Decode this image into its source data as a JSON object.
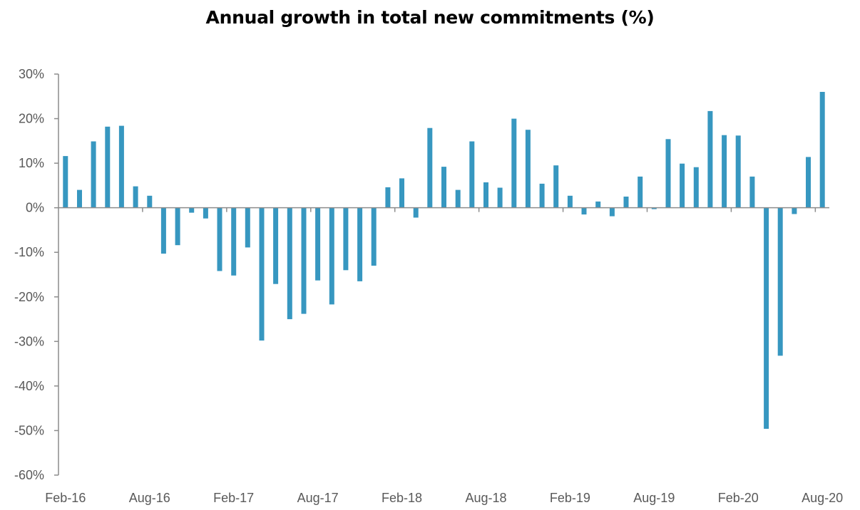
{
  "chart_data": {
    "type": "bar",
    "title": "Annual growth in total new commitments (%)",
    "xlabel": "",
    "ylabel": "",
    "ylim": [
      -60,
      30
    ],
    "yticks": [
      30,
      20,
      10,
      0,
      -10,
      -20,
      -30,
      -40,
      -50,
      -60
    ],
    "ytick_labels": [
      "30%",
      "20%",
      "10%",
      "0%",
      "-10%",
      "-20%",
      "-30%",
      "-40%",
      "-50%",
      "-60%"
    ],
    "xtick_labels": [
      "Feb-16",
      "Aug-16",
      "Feb-17",
      "Aug-17",
      "Feb-18",
      "Aug-18",
      "Feb-19",
      "Aug-19",
      "Feb-20",
      "Aug-20"
    ],
    "grid": false,
    "legend": "none",
    "bar_color": "#3797c0",
    "categories": [
      "Feb-16",
      "Mar-16",
      "Apr-16",
      "May-16",
      "Jun-16",
      "Jul-16",
      "Aug-16",
      "Sep-16",
      "Oct-16",
      "Nov-16",
      "Dec-16",
      "Jan-17",
      "Feb-17",
      "Mar-17",
      "Apr-17",
      "May-17",
      "Jun-17",
      "Jul-17",
      "Aug-17",
      "Sep-17",
      "Oct-17",
      "Nov-17",
      "Dec-17",
      "Jan-18",
      "Feb-18",
      "Mar-18",
      "Apr-18",
      "May-18",
      "Jun-18",
      "Jul-18",
      "Aug-18",
      "Sep-18",
      "Oct-18",
      "Nov-18",
      "Dec-18",
      "Jan-19",
      "Feb-19",
      "Mar-19",
      "Apr-19",
      "May-19",
      "Jun-19",
      "Jul-19",
      "Aug-19",
      "Sep-19",
      "Oct-19",
      "Nov-19",
      "Dec-19",
      "Jan-20",
      "Feb-20",
      "Mar-20",
      "Apr-20",
      "May-20",
      "Jun-20",
      "Jul-20",
      "Aug-20"
    ],
    "values": [
      11.6,
      4.0,
      14.9,
      18.2,
      18.4,
      4.8,
      2.7,
      -10.3,
      -8.4,
      -1.1,
      -2.4,
      -14.2,
      -15.2,
      -8.9,
      -29.8,
      -17.1,
      -25.0,
      -23.8,
      -16.3,
      -21.7,
      -14.0,
      -16.5,
      -13.0,
      4.6,
      6.6,
      -2.2,
      17.9,
      9.2,
      4.0,
      14.9,
      5.7,
      4.5,
      20.0,
      17.5,
      5.4,
      9.5,
      2.7,
      -1.5,
      1.4,
      -1.9,
      2.5,
      7.0,
      -0.3,
      15.4,
      9.9,
      9.1,
      21.7,
      16.3,
      16.2,
      7.0,
      -49.6,
      -33.2,
      -1.4,
      11.4,
      26.0
    ]
  }
}
